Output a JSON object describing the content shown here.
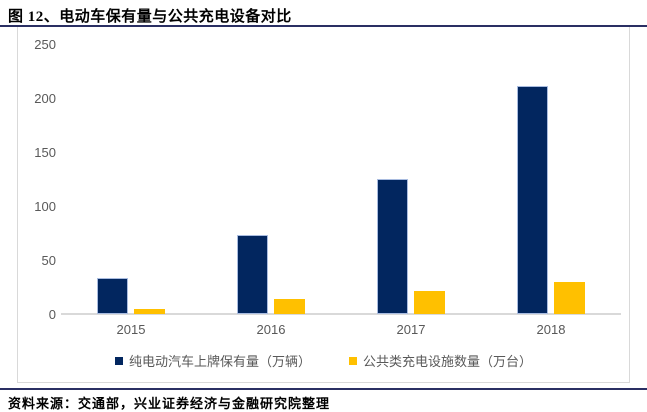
{
  "page": {
    "title": "图 12、电动车保有量与公共充电设备对比",
    "source": "资料来源：交通部，兴业证券经济与金融研究院整理"
  },
  "colors": {
    "navy": "#02265F",
    "navy_edge": "#A9BCE0",
    "gold": "#FFC000",
    "axis_text": "#595959",
    "axis_line": "#D9D9D9",
    "rule": "#2A2F63"
  },
  "chart_data": {
    "type": "bar",
    "categories": [
      "2015",
      "2016",
      "2017",
      "2018"
    ],
    "series": [
      {
        "name": "纯电动汽车上牌保有量（万辆）",
        "color_key": "navy",
        "values": [
          33,
          73,
          125,
          211
        ]
      },
      {
        "name": "公共类充电设施数量（万台）",
        "color_key": "gold",
        "values": [
          5,
          14,
          21,
          30
        ]
      }
    ],
    "title": "电动车保有量与公共充电设备对比",
    "xlabel": "",
    "ylabel": "",
    "ylim": [
      0,
      250
    ],
    "yticks": [
      0,
      50,
      100,
      150,
      200,
      250
    ],
    "grid": false,
    "legend_position": "bottom"
  }
}
